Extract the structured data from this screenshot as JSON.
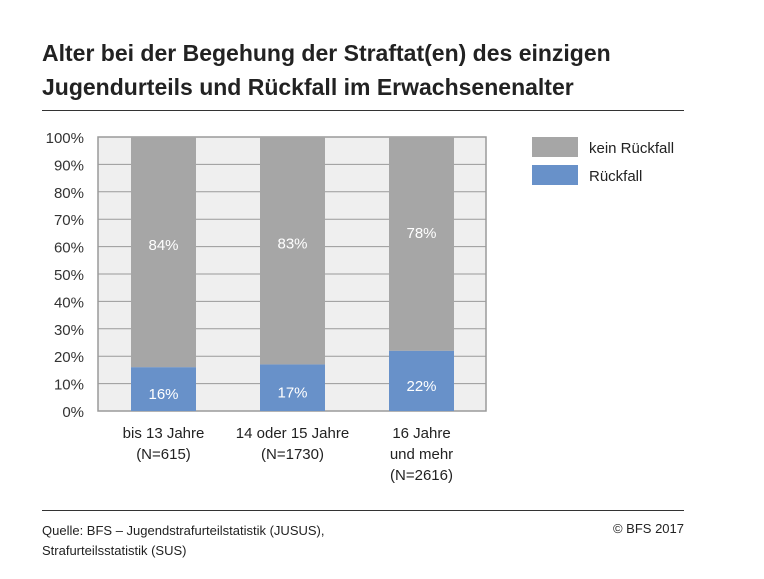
{
  "title_line1": "Alter bei der Begehung der Straftat(en) des einzigen",
  "title_line2": "Jugendurteils und Rückfall im Erwachsenenalter",
  "source_line1": "Quelle: BFS – Jugendstrafurteilstatistik (JUSUS),",
  "source_line2": "Strafurteilsstatistik (SUS)",
  "copyright": "© BFS 2017",
  "chart_data": {
    "type": "bar",
    "stacked": true,
    "categories": [
      [
        "bis 13 Jahre",
        "(N=615)"
      ],
      [
        "14 oder 15 Jahre",
        "(N=1730)"
      ],
      [
        "16 Jahre",
        "und mehr",
        "(N=2616)"
      ]
    ],
    "series": [
      {
        "name": "Rückfall",
        "values": [
          16,
          17,
          22
        ],
        "labels": [
          "16%",
          "17%",
          "22%"
        ],
        "color": "#6891c9"
      },
      {
        "name": "kein Rückfall",
        "values": [
          84,
          83,
          78
        ],
        "labels": [
          "84%",
          "83%",
          "78%"
        ],
        "color": "#a6a6a6"
      }
    ],
    "yticks": [
      "0%",
      "10%",
      "20%",
      "30%",
      "40%",
      "50%",
      "60%",
      "70%",
      "80%",
      "90%",
      "100%"
    ],
    "ylim": [
      0,
      100
    ],
    "grid": true,
    "plot_background": "#efefef",
    "legend": "right"
  }
}
